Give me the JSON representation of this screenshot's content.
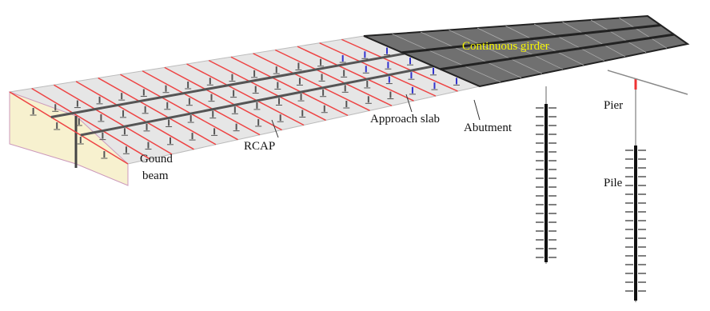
{
  "labels": {
    "continuous_girder": "Continuous girder",
    "pier": "Pier",
    "pile": "Pile",
    "approach_slab": "Approach slab",
    "abutment": "Abutment",
    "rcap": "RCAP",
    "ground_beam": [
      "Gound",
      "beam"
    ]
  }
}
